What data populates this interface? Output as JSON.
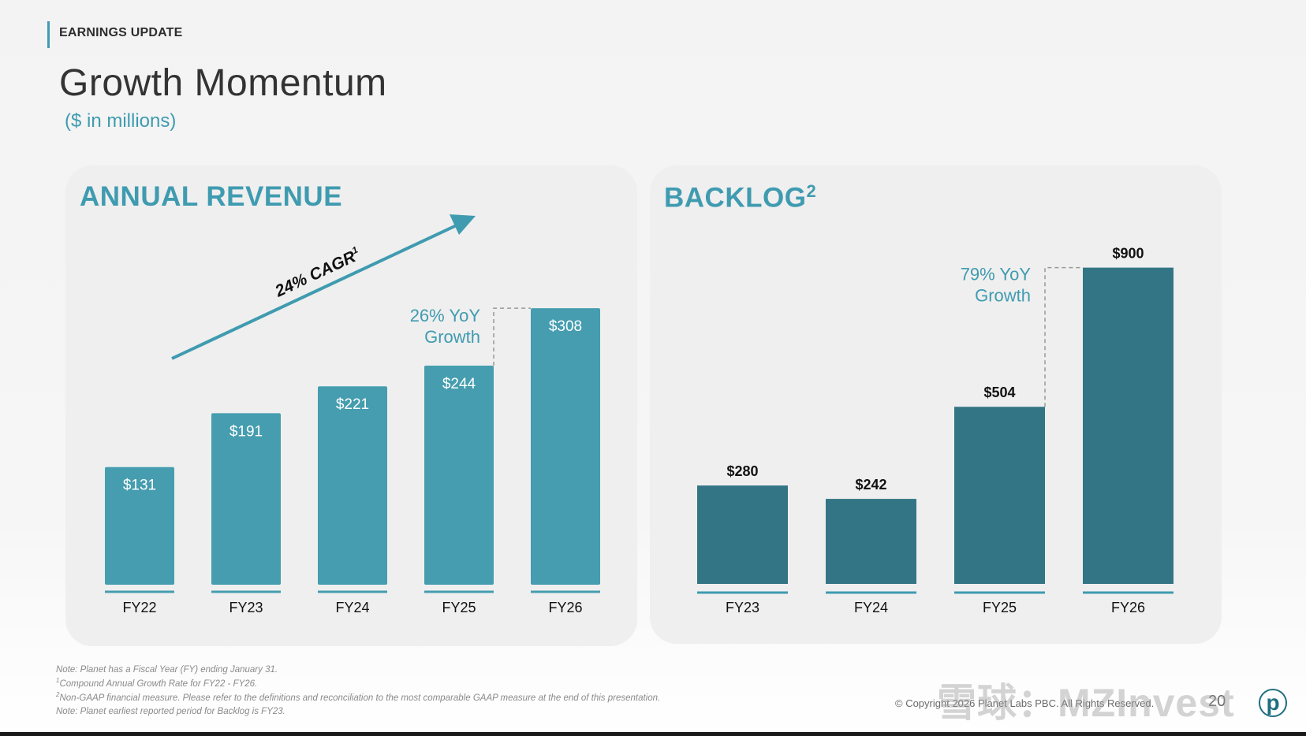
{
  "header": {
    "kicker": "EARNINGS UPDATE",
    "title": "Growth Momentum",
    "subtitle": "($ in millions)"
  },
  "chart_data": [
    {
      "type": "bar",
      "title": "ANNUAL REVENUE",
      "categories": [
        "FY22",
        "FY23",
        "FY24",
        "FY25",
        "FY26"
      ],
      "values": [
        131,
        191,
        221,
        244,
        308
      ],
      "value_labels": [
        "$131",
        "$191",
        "$221",
        "$244",
        "$308"
      ],
      "label_position": "inside",
      "ylim": [
        0,
        330
      ],
      "bar_color": "#459daf",
      "annotations": {
        "cagr_text": "24% CAGR",
        "cagr_footnote": "1",
        "yoy_line1": "26% YoY",
        "yoy_line2": "Growth"
      }
    },
    {
      "type": "bar",
      "title": "BACKLOG",
      "title_footnote": "2",
      "categories": [
        "FY23",
        "FY24",
        "FY25",
        "FY26"
      ],
      "values": [
        280,
        242,
        504,
        900
      ],
      "value_labels": [
        "$280",
        "$242",
        "$504",
        "$900"
      ],
      "label_position": "above",
      "ylim": [
        0,
        935
      ],
      "bar_color": "#337585",
      "annotations": {
        "yoy_line1": "79% YoY",
        "yoy_line2": "Growth"
      }
    }
  ],
  "footer": {
    "notes": [
      {
        "sup": "",
        "text": "Note: Planet has a Fiscal Year (FY) ending January 31."
      },
      {
        "sup": "1",
        "text": "Compound Annual Growth Rate for FY22 - FY26."
      },
      {
        "sup": "2",
        "text": "Non-GAAP financial measure. Please refer to the definitions and reconciliation to the most comparable GAAP measure at the end of this presentation."
      },
      {
        "sup": "",
        "text": "Note: Planet earliest reported period for Backlog is FY23."
      }
    ],
    "copyright": "© Copyright 2026 Planet Labs PBC. All Rights Reserved.",
    "page_number": "20",
    "logo_letter": "p",
    "watermark": "雪球：MZInvest"
  },
  "colors": {
    "accent": "#3f9bb0",
    "revenue_bar": "#459daf",
    "backlog_bar": "#337585",
    "cagr_arrow": "#3f9bb0"
  }
}
